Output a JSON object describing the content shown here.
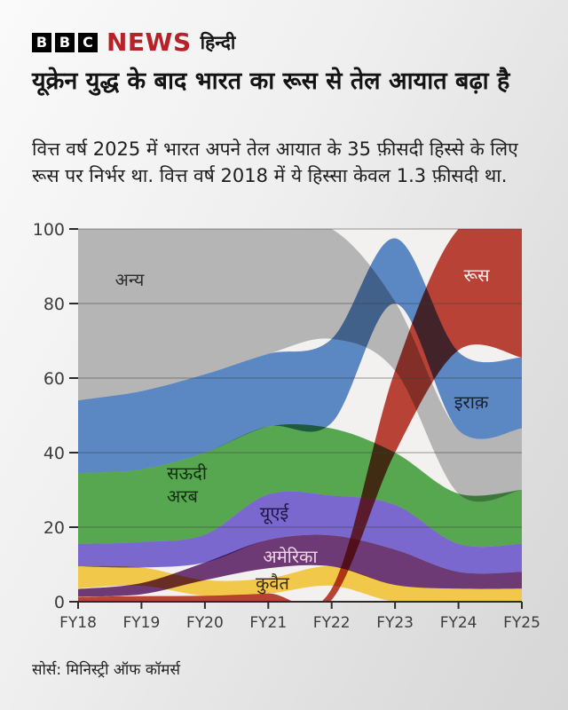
{
  "header": {
    "logo_blocks": [
      "B",
      "B",
      "C"
    ],
    "news_label": "NEWS",
    "news_color": "#b52228",
    "lang_label": "हिन्दी"
  },
  "title": "यूक्रेन युद्ध के बाद भारत का रूस से तेल आयात बढ़ा है",
  "subtitle": "वित्त वर्ष 2025 में भारत अपने तेल आयात के 35 फ़ीसदी हिस्से के लिए रूस पर निर्भर था. वित्त वर्ष 2018 में ये हिस्सा केवल 1.3 फ़ीसदी था.",
  "source": "सोर्स: मिनिस्ट्री ऑफ कॉमर्स",
  "axis": {
    "y": [
      "100",
      "80",
      "60",
      "40",
      "20",
      "0"
    ],
    "x": [
      "FY18",
      "FY19",
      "FY20",
      "FY21",
      "FY22",
      "FY23",
      "FY24",
      "FY25"
    ]
  },
  "chart_data": {
    "type": "area",
    "variant": "stream-share-of-oil-imports-percent",
    "categories": [
      "FY18",
      "FY19",
      "FY20",
      "FY21",
      "FY22",
      "FY23",
      "FY24",
      "FY25"
    ],
    "ylim": [
      0,
      100
    ],
    "y_ticks": [
      0,
      20,
      40,
      60,
      80,
      100
    ],
    "grid": true,
    "plot_bg": "#f2f1ef",
    "series": [
      {
        "id": "other",
        "name": "अन्य",
        "color": "#b5b5b5",
        "values": [
          46,
          43.5,
          39,
          33.5,
          29.5,
          18.5,
          17,
          16.5
        ],
        "band_bottom": [
          54,
          56.5,
          61,
          66.5,
          70.5,
          62,
          29,
          30
        ],
        "band_top": [
          100,
          100,
          100,
          100,
          100,
          80.5,
          46,
          46.5
        ]
      },
      {
        "id": "iraq",
        "name": "इराक़",
        "color": "#5b87c3",
        "values": [
          19.5,
          21,
          21,
          19.5,
          22.5,
          17.5,
          21,
          19
        ],
        "band_bottom": [
          34.5,
          35.5,
          40,
          47,
          48,
          80,
          46,
          46.5
        ],
        "band_top": [
          54,
          56.5,
          61,
          66.5,
          70.5,
          97.5,
          67,
          65.5
        ]
      },
      {
        "id": "saudi",
        "name": "सऊदी अरब",
        "color": "#57a751",
        "values": [
          19,
          19.5,
          22,
          18.2,
          18,
          14,
          13.5,
          14.5
        ],
        "band_bottom": [
          15.5,
          16,
          18,
          28.8,
          28.5,
          26,
          15.5,
          15.5
        ],
        "band_top": [
          34.5,
          35.5,
          40,
          47,
          46.5,
          40,
          29,
          30
        ]
      },
      {
        "id": "uae",
        "name": "यूएई",
        "color": "#7a68cf",
        "values": [
          6,
          6.8,
          7.5,
          12.2,
          10.7,
          12,
          7.5,
          7.5
        ],
        "band_bottom": [
          9.5,
          9.2,
          10.5,
          16.6,
          17.8,
          14,
          8,
          8
        ],
        "band_top": [
          15.5,
          16,
          18,
          28.8,
          28.5,
          26,
          15.5,
          15.5
        ]
      },
      {
        "id": "usa",
        "name": "अमेरिका",
        "color": "#6e3a75",
        "values": [
          2,
          3,
          4.7,
          7.6,
          8.3,
          9.5,
          4.5,
          4.5
        ],
        "band_bottom": [
          1.4,
          2,
          5.8,
          9,
          9.5,
          4.5,
          3.5,
          3.5
        ],
        "band_top": [
          3.4,
          5,
          10.5,
          16.6,
          17.8,
          14,
          8,
          8
        ]
      },
      {
        "id": "kuwait",
        "name": "कुवैत",
        "color": "#f2c84b",
        "values": [
          5.9,
          4.9,
          4.2,
          4.1,
          5.2,
          4.5,
          3.5,
          3.5
        ],
        "band_bottom": [
          3.6,
          4.3,
          1.6,
          2.2,
          4.3,
          0,
          0,
          0
        ],
        "band_top": [
          9.5,
          9.2,
          5.8,
          6.3,
          9.5,
          4.5,
          3.5,
          3.5
        ]
      },
      {
        "id": "russia",
        "name": "रूस",
        "color": "#b94237",
        "values": [
          1.3,
          1.5,
          1.6,
          2.2,
          3,
          22,
          32.5,
          35
        ],
        "band_bottom": [
          0,
          0,
          0,
          0,
          0.5,
          40,
          67.5,
          65.5
        ],
        "band_top": [
          1.3,
          1.5,
          1.6,
          2.2,
          3.5,
          62,
          100,
          100
        ]
      }
    ],
    "labels": {
      "other": {
        "text": "अन्य",
        "color": "#2e2e2e"
      },
      "russia": {
        "text": "रूस",
        "color": "#f6efec"
      },
      "iraq": {
        "text": "इराक़",
        "color": "#16212f"
      },
      "saudi1": {
        "text": "सऊदी",
        "color": "#10300f"
      },
      "saudi2": {
        "text": "अरब",
        "color": "#10300f"
      },
      "uae": {
        "text": "यूएई",
        "color": "#1d1740"
      },
      "usa": {
        "text": "अमेरिका",
        "color": "#efd3e8"
      },
      "kuwait": {
        "text": "कुवैत",
        "color": "#3a2a06"
      }
    }
  }
}
